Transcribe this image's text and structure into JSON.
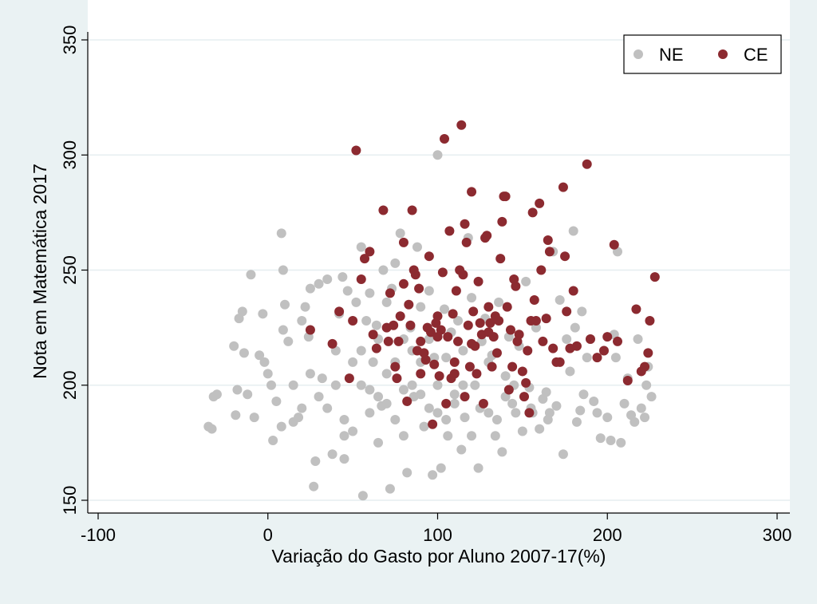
{
  "chart_data": {
    "type": "scatter",
    "title": "",
    "xlabel": "Variação do Gasto por Aluno 2007-17(%)",
    "ylabel": "Nota em Matemática 2017",
    "xlim": [
      -100,
      300
    ],
    "ylim": [
      150,
      350
    ],
    "xticks": [
      "-100",
      "0",
      "100",
      "200",
      "300"
    ],
    "yticks": [
      "150",
      "200",
      "250",
      "300",
      "350"
    ],
    "grid": "horizontal",
    "legend": {
      "position": "top-right",
      "entries": [
        "NE",
        "CE"
      ]
    },
    "colors": {
      "NE": "#c0c0c0",
      "CE": "#8c2a30",
      "background": "#eaf2f3",
      "plot_background": "#ffffff",
      "grid": "#e6eef0"
    },
    "series": [
      {
        "name": "NE",
        "points": [
          [
            -35,
            182
          ],
          [
            -33,
            181
          ],
          [
            -32,
            195
          ],
          [
            -30,
            196
          ],
          [
            -20,
            217
          ],
          [
            -19,
            187
          ],
          [
            -18,
            198
          ],
          [
            -17,
            229
          ],
          [
            -15,
            232
          ],
          [
            -14,
            214
          ],
          [
            -12,
            196
          ],
          [
            -10,
            248
          ],
          [
            -8,
            186
          ],
          [
            -5,
            213
          ],
          [
            -3,
            231
          ],
          [
            -2,
            210
          ],
          [
            0,
            205
          ],
          [
            2,
            200
          ],
          [
            3,
            176
          ],
          [
            5,
            193
          ],
          [
            8,
            266
          ],
          [
            9,
            250
          ],
          [
            9,
            224
          ],
          [
            10,
            235
          ],
          [
            12,
            219
          ],
          [
            15,
            184
          ],
          [
            18,
            186
          ],
          [
            20,
            228
          ],
          [
            22,
            234
          ],
          [
            24,
            221
          ],
          [
            25,
            242
          ],
          [
            27,
            156
          ],
          [
            28,
            167
          ],
          [
            30,
            244
          ],
          [
            32,
            203
          ],
          [
            35,
            246
          ],
          [
            38,
            170
          ],
          [
            40,
            215
          ],
          [
            42,
            231
          ],
          [
            44,
            247
          ],
          [
            45,
            168
          ],
          [
            47,
            241
          ],
          [
            50,
            180
          ],
          [
            52,
            236
          ],
          [
            55,
            260
          ],
          [
            56,
            152
          ],
          [
            58,
            228
          ],
          [
            60,
            240
          ],
          [
            62,
            210
          ],
          [
            64,
            226
          ],
          [
            65,
            175
          ],
          [
            67,
            191
          ],
          [
            68,
            250
          ],
          [
            70,
            236
          ],
          [
            72,
            155
          ],
          [
            73,
            242
          ],
          [
            75,
            253
          ],
          [
            78,
            266
          ],
          [
            80,
            220
          ],
          [
            82,
            162
          ],
          [
            84,
            225
          ],
          [
            86,
            195
          ],
          [
            88,
            260
          ],
          [
            90,
            234
          ],
          [
            92,
            182
          ],
          [
            95,
            241
          ],
          [
            97,
            161
          ],
          [
            98,
            212
          ],
          [
            100,
            300
          ],
          [
            102,
            164
          ],
          [
            104,
            233
          ],
          [
            106,
            178
          ],
          [
            108,
            223
          ],
          [
            110,
            196
          ],
          [
            112,
            228
          ],
          [
            114,
            172
          ],
          [
            116,
            186
          ],
          [
            118,
            264
          ],
          [
            120,
            238
          ],
          [
            122,
            200
          ],
          [
            124,
            164
          ],
          [
            126,
            219
          ],
          [
            128,
            229
          ],
          [
            130,
            188
          ],
          [
            132,
            213
          ],
          [
            134,
            178
          ],
          [
            136,
            236
          ],
          [
            138,
            171
          ],
          [
            140,
            204
          ],
          [
            142,
            221
          ],
          [
            144,
            192
          ],
          [
            146,
            188
          ],
          [
            148,
            217
          ],
          [
            150,
            180
          ],
          [
            152,
            245
          ],
          [
            154,
            199
          ],
          [
            156,
            188
          ],
          [
            158,
            225
          ],
          [
            160,
            181
          ],
          [
            162,
            194
          ],
          [
            164,
            197
          ],
          [
            166,
            188
          ],
          [
            168,
            258
          ],
          [
            170,
            191
          ],
          [
            172,
            237
          ],
          [
            174,
            170
          ],
          [
            176,
            220
          ],
          [
            178,
            206
          ],
          [
            180,
            267
          ],
          [
            181,
            225
          ],
          [
            182,
            184
          ],
          [
            184,
            189
          ],
          [
            185,
            232
          ],
          [
            186,
            196
          ],
          [
            188,
            212
          ],
          [
            190,
            220
          ],
          [
            192,
            193
          ],
          [
            194,
            188
          ],
          [
            196,
            177
          ],
          [
            198,
            215
          ],
          [
            200,
            186
          ],
          [
            202,
            176
          ],
          [
            204,
            222
          ],
          [
            205,
            212
          ],
          [
            206,
            258
          ],
          [
            208,
            175
          ],
          [
            210,
            192
          ],
          [
            212,
            203
          ],
          [
            214,
            187
          ],
          [
            216,
            184
          ],
          [
            218,
            220
          ],
          [
            220,
            190
          ],
          [
            222,
            186
          ],
          [
            223,
            200
          ],
          [
            224,
            208
          ],
          [
            226,
            195
          ],
          [
            8,
            182
          ],
          [
            15,
            200
          ],
          [
            25,
            205
          ],
          [
            35,
            190
          ],
          [
            45,
            185
          ],
          [
            55,
            200
          ],
          [
            65,
            195
          ],
          [
            75,
            185
          ],
          [
            85,
            200
          ],
          [
            95,
            190
          ],
          [
            105,
            185
          ],
          [
            115,
            200
          ],
          [
            125,
            190
          ],
          [
            135,
            185
          ],
          [
            145,
            200
          ],
          [
            155,
            190
          ],
          [
            165,
            185
          ],
          [
            45,
            178
          ],
          [
            50,
            210
          ],
          [
            60,
            188
          ],
          [
            70,
            205
          ],
          [
            80,
            178
          ],
          [
            90,
            210
          ],
          [
            100,
            188
          ],
          [
            110,
            205
          ],
          [
            120,
            178
          ],
          [
            130,
            210
          ],
          [
            140,
            195
          ],
          [
            55,
            215
          ],
          [
            65,
            220
          ],
          [
            75,
            210
          ],
          [
            85,
            215
          ],
          [
            95,
            220
          ],
          [
            105,
            212
          ],
          [
            115,
            215
          ],
          [
            60,
            198
          ],
          [
            70,
            192
          ],
          [
            80,
            198
          ],
          [
            90,
            196
          ],
          [
            100,
            200
          ],
          [
            110,
            192
          ],
          [
            40,
            200
          ],
          [
            30,
            195
          ],
          [
            20,
            190
          ]
        ]
      },
      {
        "name": "CE",
        "points": [
          [
            25,
            224
          ],
          [
            38,
            218
          ],
          [
            42,
            232
          ],
          [
            48,
            203
          ],
          [
            50,
            228
          ],
          [
            52,
            302
          ],
          [
            55,
            246
          ],
          [
            57,
            255
          ],
          [
            60,
            258
          ],
          [
            62,
            222
          ],
          [
            64,
            216
          ],
          [
            68,
            276
          ],
          [
            70,
            225
          ],
          [
            71,
            219
          ],
          [
            72,
            240
          ],
          [
            74,
            226
          ],
          [
            75,
            208
          ],
          [
            76,
            203
          ],
          [
            77,
            219
          ],
          [
            78,
            230
          ],
          [
            80,
            262
          ],
          [
            80,
            244
          ],
          [
            82,
            193
          ],
          [
            83,
            235
          ],
          [
            84,
            226
          ],
          [
            85,
            276
          ],
          [
            86,
            250
          ],
          [
            87,
            248
          ],
          [
            88,
            215
          ],
          [
            89,
            242
          ],
          [
            90,
            205
          ],
          [
            90,
            219
          ],
          [
            92,
            214
          ],
          [
            93,
            211
          ],
          [
            94,
            225
          ],
          [
            95,
            256
          ],
          [
            96,
            223
          ],
          [
            97,
            183
          ],
          [
            98,
            209
          ],
          [
            99,
            227
          ],
          [
            100,
            221
          ],
          [
            101,
            204
          ],
          [
            102,
            224
          ],
          [
            103,
            249
          ],
          [
            104,
            307
          ],
          [
            105,
            192
          ],
          [
            106,
            221
          ],
          [
            107,
            267
          ],
          [
            108,
            203
          ],
          [
            109,
            231
          ],
          [
            110,
            210
          ],
          [
            110,
            205
          ],
          [
            111,
            241
          ],
          [
            112,
            219
          ],
          [
            113,
            250
          ],
          [
            114,
            313
          ],
          [
            115,
            248
          ],
          [
            116,
            270
          ],
          [
            116,
            195
          ],
          [
            117,
            262
          ],
          [
            118,
            226
          ],
          [
            119,
            208
          ],
          [
            120,
            284
          ],
          [
            121,
            232
          ],
          [
            122,
            217
          ],
          [
            123,
            205
          ],
          [
            124,
            245
          ],
          [
            125,
            227
          ],
          [
            126,
            222
          ],
          [
            127,
            192
          ],
          [
            128,
            264
          ],
          [
            129,
            265
          ],
          [
            130,
            234
          ],
          [
            131,
            227
          ],
          [
            132,
            208
          ],
          [
            133,
            221
          ],
          [
            134,
            230
          ],
          [
            135,
            214
          ],
          [
            136,
            228
          ],
          [
            137,
            255
          ],
          [
            138,
            271
          ],
          [
            139,
            282
          ],
          [
            140,
            282
          ],
          [
            141,
            234
          ],
          [
            142,
            198
          ],
          [
            143,
            224
          ],
          [
            144,
            208
          ],
          [
            145,
            246
          ],
          [
            146,
            243
          ],
          [
            147,
            219
          ],
          [
            148,
            222
          ],
          [
            150,
            206
          ],
          [
            151,
            195
          ],
          [
            152,
            201
          ],
          [
            153,
            215
          ],
          [
            154,
            188
          ],
          [
            155,
            228
          ],
          [
            156,
            275
          ],
          [
            157,
            237
          ],
          [
            158,
            228
          ],
          [
            160,
            279
          ],
          [
            161,
            250
          ],
          [
            162,
            219
          ],
          [
            164,
            229
          ],
          [
            165,
            263
          ],
          [
            166,
            258
          ],
          [
            168,
            216
          ],
          [
            170,
            210
          ],
          [
            172,
            210
          ],
          [
            174,
            286
          ],
          [
            175,
            256
          ],
          [
            176,
            232
          ],
          [
            178,
            216
          ],
          [
            180,
            241
          ],
          [
            182,
            217
          ],
          [
            188,
            296
          ],
          [
            190,
            220
          ],
          [
            194,
            212
          ],
          [
            198,
            215
          ],
          [
            200,
            221
          ],
          [
            204,
            261
          ],
          [
            206,
            219
          ],
          [
            212,
            202
          ],
          [
            217,
            233
          ],
          [
            220,
            206
          ],
          [
            222,
            208
          ],
          [
            224,
            214
          ],
          [
            225,
            228
          ],
          [
            228,
            247
          ],
          [
            130,
            223
          ],
          [
            120,
            218
          ],
          [
            100,
            230
          ]
        ]
      }
    ]
  }
}
